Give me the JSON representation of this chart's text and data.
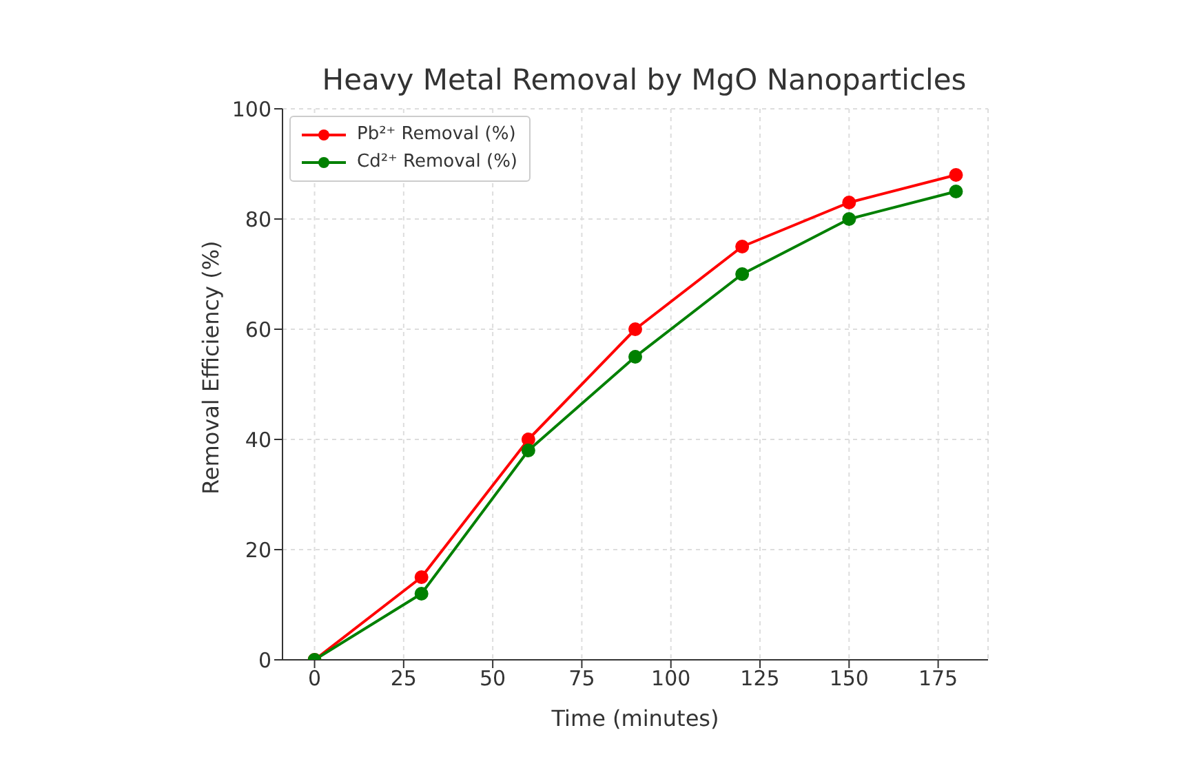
{
  "chart_data": {
    "type": "line",
    "title": "Heavy Metal Removal by MgO Nanoparticles",
    "xlabel": "Time (minutes)",
    "ylabel": "Removal Efficiency (%)",
    "x": [
      0,
      30,
      60,
      90,
      120,
      150,
      180
    ],
    "series": [
      {
        "name": "Pb²⁺ Removal (%)",
        "color": "#ff0000",
        "values": [
          0,
          15,
          40,
          60,
          75,
          83,
          88
        ]
      },
      {
        "name": "Cd²⁺ Removal (%)",
        "color": "#008000",
        "values": [
          0,
          12,
          38,
          55,
          70,
          80,
          85
        ]
      }
    ],
    "xlim": [
      -9,
      189
    ],
    "xticks": [
      0,
      25,
      50,
      75,
      100,
      125,
      150,
      175
    ],
    "ylim": [
      0,
      100
    ],
    "yticks": [
      0,
      20,
      40,
      60,
      80,
      100
    ],
    "grid": true,
    "legend": "top left",
    "marker": "circle",
    "line_style": "solid"
  }
}
